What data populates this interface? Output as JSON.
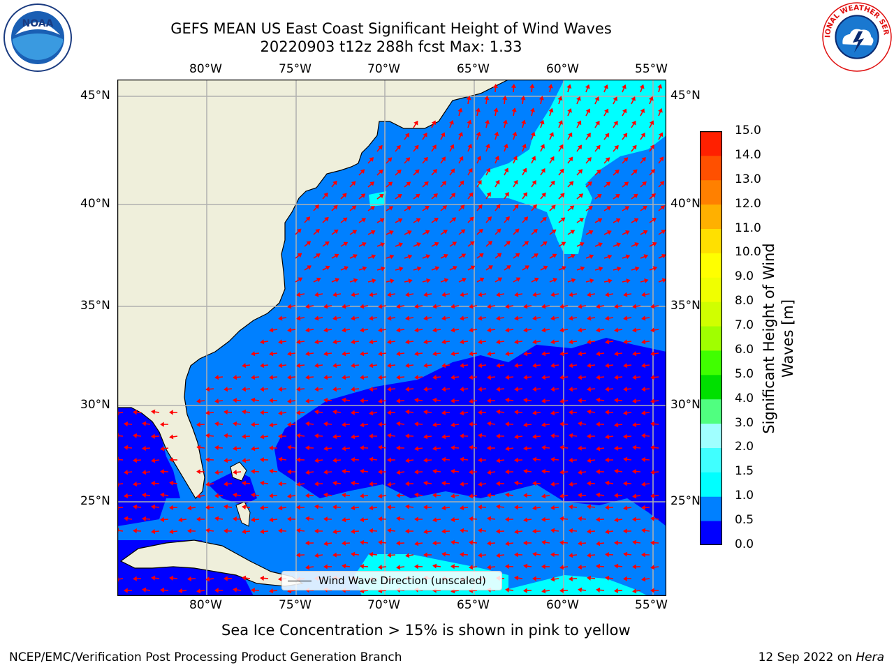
{
  "header": {
    "title_line1": "GEFS MEAN US East Coast Significant Height of Wind Waves",
    "title_line2": "20220903 t12z 288h fcst   Max: 1.33"
  },
  "logos": {
    "noaa_text": "NOAA",
    "nws_text": "NATIONAL WEATHER SERVICE"
  },
  "map": {
    "lon_ticks": [
      "80°W",
      "75°W",
      "70°W",
      "65°W",
      "60°W",
      "55°W"
    ],
    "lat_ticks": [
      "45°N",
      "40°N",
      "35°N",
      "30°N",
      "25°N"
    ],
    "legend_label": "Wind Wave Direction (unscaled)",
    "land_color": "#efefdb",
    "arrow_color": "#ff0000"
  },
  "colorbar": {
    "label": "Significant Height of Wind Waves [m]",
    "ticks": [
      "0.0",
      "0.5",
      "1.0",
      "1.5",
      "2.0",
      "3.0",
      "4.0",
      "5.0",
      "6.0",
      "7.0",
      "8.0",
      "9.0",
      "10.0",
      "11.0",
      "12.0",
      "13.0",
      "14.0",
      "15.0"
    ],
    "colors": [
      "#0000ff",
      "#0080ff",
      "#00ffff",
      "#40ffff",
      "#a0ffff",
      "#50ff80",
      "#00e000",
      "#40ff00",
      "#a0ff00",
      "#d0ff00",
      "#f0ff00",
      "#ffff00",
      "#ffe000",
      "#ffb000",
      "#ff8000",
      "#ff5000",
      "#ff2000",
      "#ff0000"
    ]
  },
  "captions": {
    "sea_ice": "Sea Ice Concentration > 15% is shown in pink to yellow",
    "footer_left": "NCEP/EMC/Verification Post Processing Product Generation Branch",
    "footer_date": "12 Sep 2022 on ",
    "footer_host": "Hera"
  }
}
